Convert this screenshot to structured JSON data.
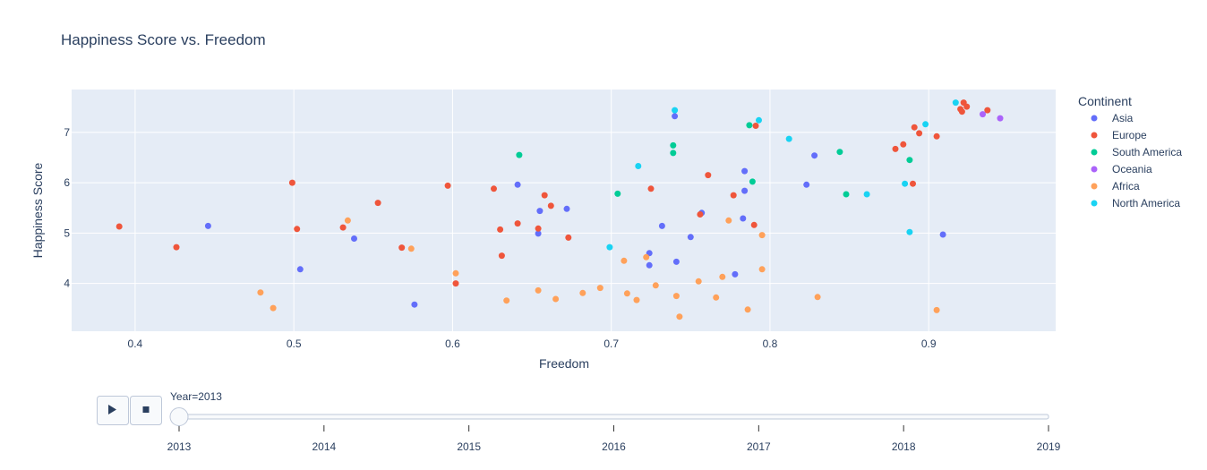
{
  "chart_data": {
    "type": "scatter",
    "title": "Happiness Score vs. Freedom",
    "xlabel": "Freedom",
    "ylabel": "Happiness Score",
    "xlim": [
      0.36,
      0.98
    ],
    "ylim": [
      3.05,
      7.85
    ],
    "xticks": [
      0.4,
      0.5,
      0.6,
      0.7,
      0.8,
      0.9
    ],
    "xtick_labels": [
      "0.4",
      "0.5",
      "0.6",
      "0.7",
      "0.8",
      "0.9"
    ],
    "yticks": [
      4,
      5,
      6,
      7
    ],
    "ytick_labels": [
      "4",
      "5",
      "6",
      "7"
    ],
    "grid": true,
    "legend_title": "Continent",
    "legend_position": "right",
    "series": [
      {
        "name": "Asia",
        "color": "#636efa",
        "points": [
          [
            0.446,
            5.14
          ],
          [
            0.504,
            4.28
          ],
          [
            0.538,
            4.89
          ],
          [
            0.576,
            3.58
          ],
          [
            0.641,
            5.96
          ],
          [
            0.655,
            5.44
          ],
          [
            0.654,
            4.99
          ],
          [
            0.672,
            5.48
          ],
          [
            0.724,
            4.6
          ],
          [
            0.724,
            4.36
          ],
          [
            0.732,
            5.14
          ],
          [
            0.74,
            7.32
          ],
          [
            0.741,
            4.43
          ],
          [
            0.75,
            4.92
          ],
          [
            0.757,
            5.4
          ],
          [
            0.778,
            4.18
          ],
          [
            0.783,
            5.29
          ],
          [
            0.784,
            6.23
          ],
          [
            0.784,
            5.84
          ],
          [
            0.823,
            5.96
          ],
          [
            0.828,
            6.54
          ],
          [
            0.909,
            4.97
          ]
        ]
      },
      {
        "name": "Europe",
        "color": "#ef553b",
        "points": [
          [
            0.39,
            5.13
          ],
          [
            0.426,
            4.72
          ],
          [
            0.499,
            6.0
          ],
          [
            0.502,
            5.08
          ],
          [
            0.531,
            5.11
          ],
          [
            0.553,
            5.6
          ],
          [
            0.568,
            4.71
          ],
          [
            0.597,
            5.94
          ],
          [
            0.602,
            4.0
          ],
          [
            0.626,
            5.88
          ],
          [
            0.63,
            5.07
          ],
          [
            0.631,
            4.55
          ],
          [
            0.641,
            5.19
          ],
          [
            0.654,
            5.09
          ],
          [
            0.658,
            5.75
          ],
          [
            0.662,
            5.54
          ],
          [
            0.673,
            4.91
          ],
          [
            0.725,
            5.88
          ],
          [
            0.756,
            5.37
          ],
          [
            0.761,
            6.15
          ],
          [
            0.777,
            5.75
          ],
          [
            0.79,
            5.16
          ],
          [
            0.791,
            7.13
          ],
          [
            0.879,
            6.67
          ],
          [
            0.884,
            6.76
          ],
          [
            0.89,
            5.98
          ],
          [
            0.891,
            7.1
          ],
          [
            0.894,
            6.98
          ],
          [
            0.905,
            6.92
          ],
          [
            0.92,
            7.46
          ],
          [
            0.921,
            7.41
          ],
          [
            0.922,
            7.59
          ],
          [
            0.924,
            7.51
          ],
          [
            0.937,
            7.44
          ]
        ]
      },
      {
        "name": "South America",
        "color": "#00cc96",
        "points": [
          [
            0.642,
            6.55
          ],
          [
            0.704,
            5.78
          ],
          [
            0.739,
            6.74
          ],
          [
            0.739,
            6.59
          ],
          [
            0.787,
            7.14
          ],
          [
            0.789,
            6.02
          ],
          [
            0.844,
            6.61
          ],
          [
            0.848,
            5.77
          ],
          [
            0.888,
            6.45
          ]
        ]
      },
      {
        "name": "Oceania",
        "color": "#ab63fa",
        "points": [
          [
            0.934,
            7.36
          ],
          [
            0.945,
            7.28
          ]
        ]
      },
      {
        "name": "Africa",
        "color": "#ffa15a",
        "points": [
          [
            0.479,
            3.82
          ],
          [
            0.487,
            3.51
          ],
          [
            0.534,
            5.25
          ],
          [
            0.574,
            4.69
          ],
          [
            0.602,
            4.2
          ],
          [
            0.634,
            3.66
          ],
          [
            0.654,
            3.86
          ],
          [
            0.665,
            3.69
          ],
          [
            0.682,
            3.81
          ],
          [
            0.693,
            3.91
          ],
          [
            0.708,
            4.45
          ],
          [
            0.71,
            3.8
          ],
          [
            0.716,
            3.67
          ],
          [
            0.722,
            4.52
          ],
          [
            0.728,
            3.96
          ],
          [
            0.741,
            3.75
          ],
          [
            0.743,
            3.34
          ],
          [
            0.755,
            4.04
          ],
          [
            0.766,
            3.72
          ],
          [
            0.77,
            4.13
          ],
          [
            0.774,
            5.25
          ],
          [
            0.786,
            3.48
          ],
          [
            0.795,
            4.96
          ],
          [
            0.795,
            4.28
          ],
          [
            0.83,
            3.73
          ],
          [
            0.905,
            3.47
          ]
        ]
      },
      {
        "name": "North America",
        "color": "#19d3f3",
        "points": [
          [
            0.699,
            4.72
          ],
          [
            0.717,
            6.33
          ],
          [
            0.74,
            7.44
          ],
          [
            0.793,
            7.24
          ],
          [
            0.812,
            6.87
          ],
          [
            0.861,
            5.77
          ],
          [
            0.885,
            5.98
          ],
          [
            0.888,
            5.02
          ],
          [
            0.898,
            7.16
          ],
          [
            0.917,
            7.59
          ]
        ]
      }
    ]
  },
  "slider": {
    "current_label": "Year=2013",
    "ticks": [
      "2013",
      "2014",
      "2015",
      "2016",
      "2017",
      "2018",
      "2019"
    ],
    "current_value": "2013"
  },
  "controls": {
    "play_icon": "play-icon",
    "stop_icon": "stop-icon"
  },
  "colors": {
    "plot_bg": "#e5ecf6",
    "grid": "#ffffff",
    "text": "#2a3f5f"
  }
}
